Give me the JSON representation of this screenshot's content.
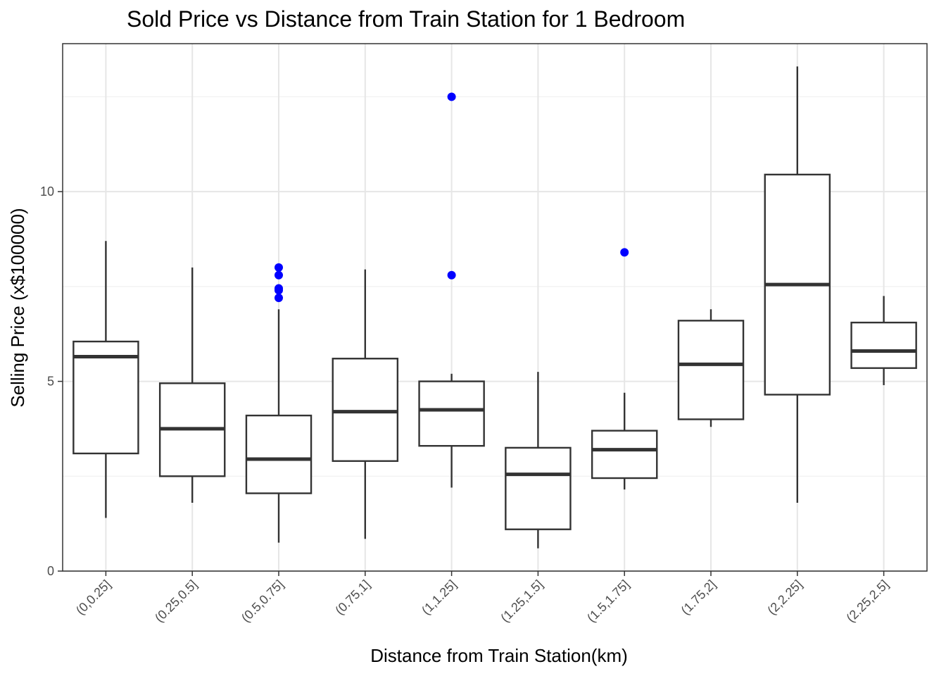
{
  "chart_data": {
    "type": "box",
    "title": "Sold Price vs Distance from Train Station for 1 Bedroom",
    "xlabel": "Distance from Train Station(km)",
    "ylabel": "Selling Price (x$100000)",
    "ylim": [
      0,
      13.9
    ],
    "yticks": [
      0,
      5,
      10
    ],
    "ytick_labels": [
      "0",
      "5",
      "10"
    ],
    "grid": true,
    "categories": [
      "(0,0.25]",
      "(0.25,0.5]",
      "(0.5,0.75]",
      "(0.75,1]",
      "(1,1.25]",
      "(1.25,1.5]",
      "(1.5,1.75]",
      "(1.75,2]",
      "(2,2.25]",
      "(2.25,2.5]"
    ],
    "boxes": [
      {
        "whisker_low": 1.4,
        "q1": 3.1,
        "median": 5.65,
        "q3": 6.05,
        "whisker_high": 8.7,
        "outliers": []
      },
      {
        "whisker_low": 1.8,
        "q1": 2.5,
        "median": 3.75,
        "q3": 4.95,
        "whisker_high": 8.0,
        "outliers": []
      },
      {
        "whisker_low": 0.75,
        "q1": 2.05,
        "median": 2.95,
        "q3": 4.1,
        "whisker_high": 6.9,
        "outliers": [
          8.0,
          7.8,
          7.45,
          7.4,
          7.2
        ]
      },
      {
        "whisker_low": 0.85,
        "q1": 2.9,
        "median": 4.2,
        "q3": 5.6,
        "whisker_high": 7.95,
        "outliers": []
      },
      {
        "whisker_low": 2.2,
        "q1": 3.3,
        "median": 4.25,
        "q3": 5.0,
        "whisker_high": 5.2,
        "outliers": [
          12.5,
          7.8
        ]
      },
      {
        "whisker_low": 0.6,
        "q1": 1.1,
        "median": 2.55,
        "q3": 3.25,
        "whisker_high": 5.25,
        "outliers": []
      },
      {
        "whisker_low": 2.15,
        "q1": 2.45,
        "median": 3.2,
        "q3": 3.7,
        "whisker_high": 4.7,
        "outliers": [
          8.4
        ]
      },
      {
        "whisker_low": 3.8,
        "q1": 4.0,
        "median": 5.45,
        "q3": 6.6,
        "whisker_high": 6.9,
        "outliers": []
      },
      {
        "whisker_low": 1.8,
        "q1": 4.65,
        "median": 7.55,
        "q3": 10.45,
        "whisker_high": 13.3,
        "outliers": []
      },
      {
        "whisker_low": 4.9,
        "q1": 5.35,
        "median": 5.8,
        "q3": 6.55,
        "whisker_high": 7.25,
        "outliers": []
      }
    ],
    "colors": {
      "box_stroke": "#333333",
      "outlier": "#0000ff",
      "grid_major": "#e6e6e6",
      "grid_minor": "#f0f0f0",
      "panel_border": "#333333",
      "tick_label": "#4d4d4d"
    }
  }
}
